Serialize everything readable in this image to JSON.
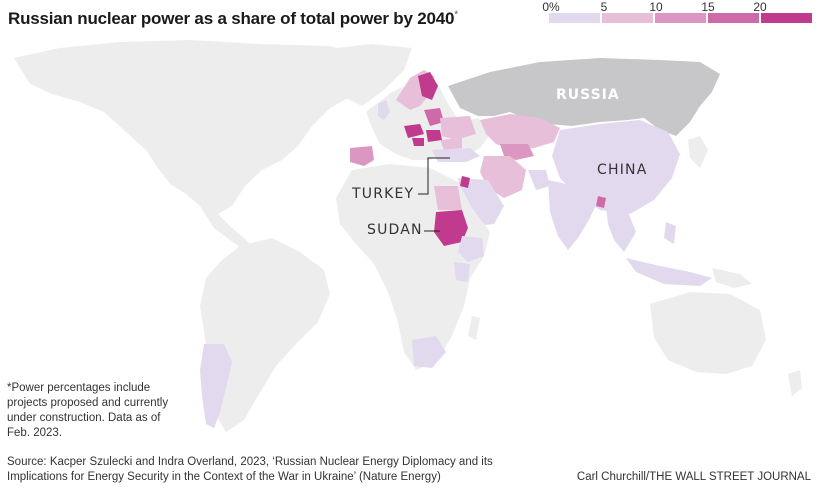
{
  "title": "Russian nuclear power as a share of total power by 2040",
  "title_marker": "*",
  "legend": {
    "ticks": [
      "0%",
      "5",
      "10",
      "15",
      "20"
    ],
    "colors": [
      "#e2d9ee",
      "#e7bfd9",
      "#dc96c2",
      "#cf6aa9",
      "#c03a8e"
    ]
  },
  "labels": {
    "russia": "RUSSIA",
    "china": "CHINA",
    "turkey": "TURKEY",
    "sudan": "SUDAN"
  },
  "footnote": "*Power percentages include projects proposed and currently under construction. Data as of Feb. 2023.",
  "source": "Source: Kacper Szulecki and Indra Overland, 2023, ‘Russian Nuclear Energy Diplomacy and its Implications for Energy Security in the Context of the War in Ukraine’ (Nature Energy)",
  "credit": "Carl Churchill/THE WALL STREET JOURNAL",
  "colors": {
    "land": "#ededed",
    "russia": "#c7c7c9",
    "ocean": "#ffffff"
  }
}
